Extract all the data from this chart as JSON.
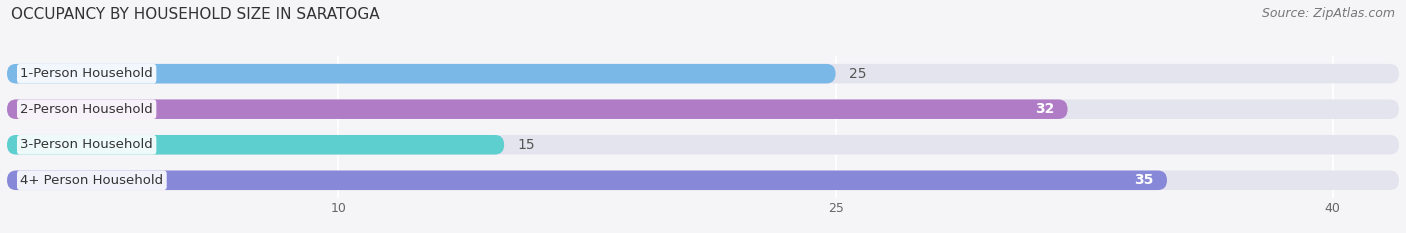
{
  "title": "OCCUPANCY BY HOUSEHOLD SIZE IN SARATOGA",
  "source": "Source: ZipAtlas.com",
  "categories": [
    "1-Person Household",
    "2-Person Household",
    "3-Person Household",
    "4+ Person Household"
  ],
  "values": [
    25,
    32,
    15,
    35
  ],
  "bar_colors": [
    "#7ab8e8",
    "#b07cc6",
    "#5ecfcf",
    "#8888d8"
  ],
  "bar_bg_color": "#e4e4ee",
  "label_colors": [
    "#555555",
    "#ffffff",
    "#555555",
    "#ffffff"
  ],
  "xlim": [
    0,
    42
  ],
  "xticks": [
    10,
    25,
    40
  ],
  "title_fontsize": 11,
  "source_fontsize": 9,
  "tick_fontsize": 9,
  "bar_label_fontsize": 10,
  "category_fontsize": 9.5,
  "bg_color": "#f5f5f8"
}
